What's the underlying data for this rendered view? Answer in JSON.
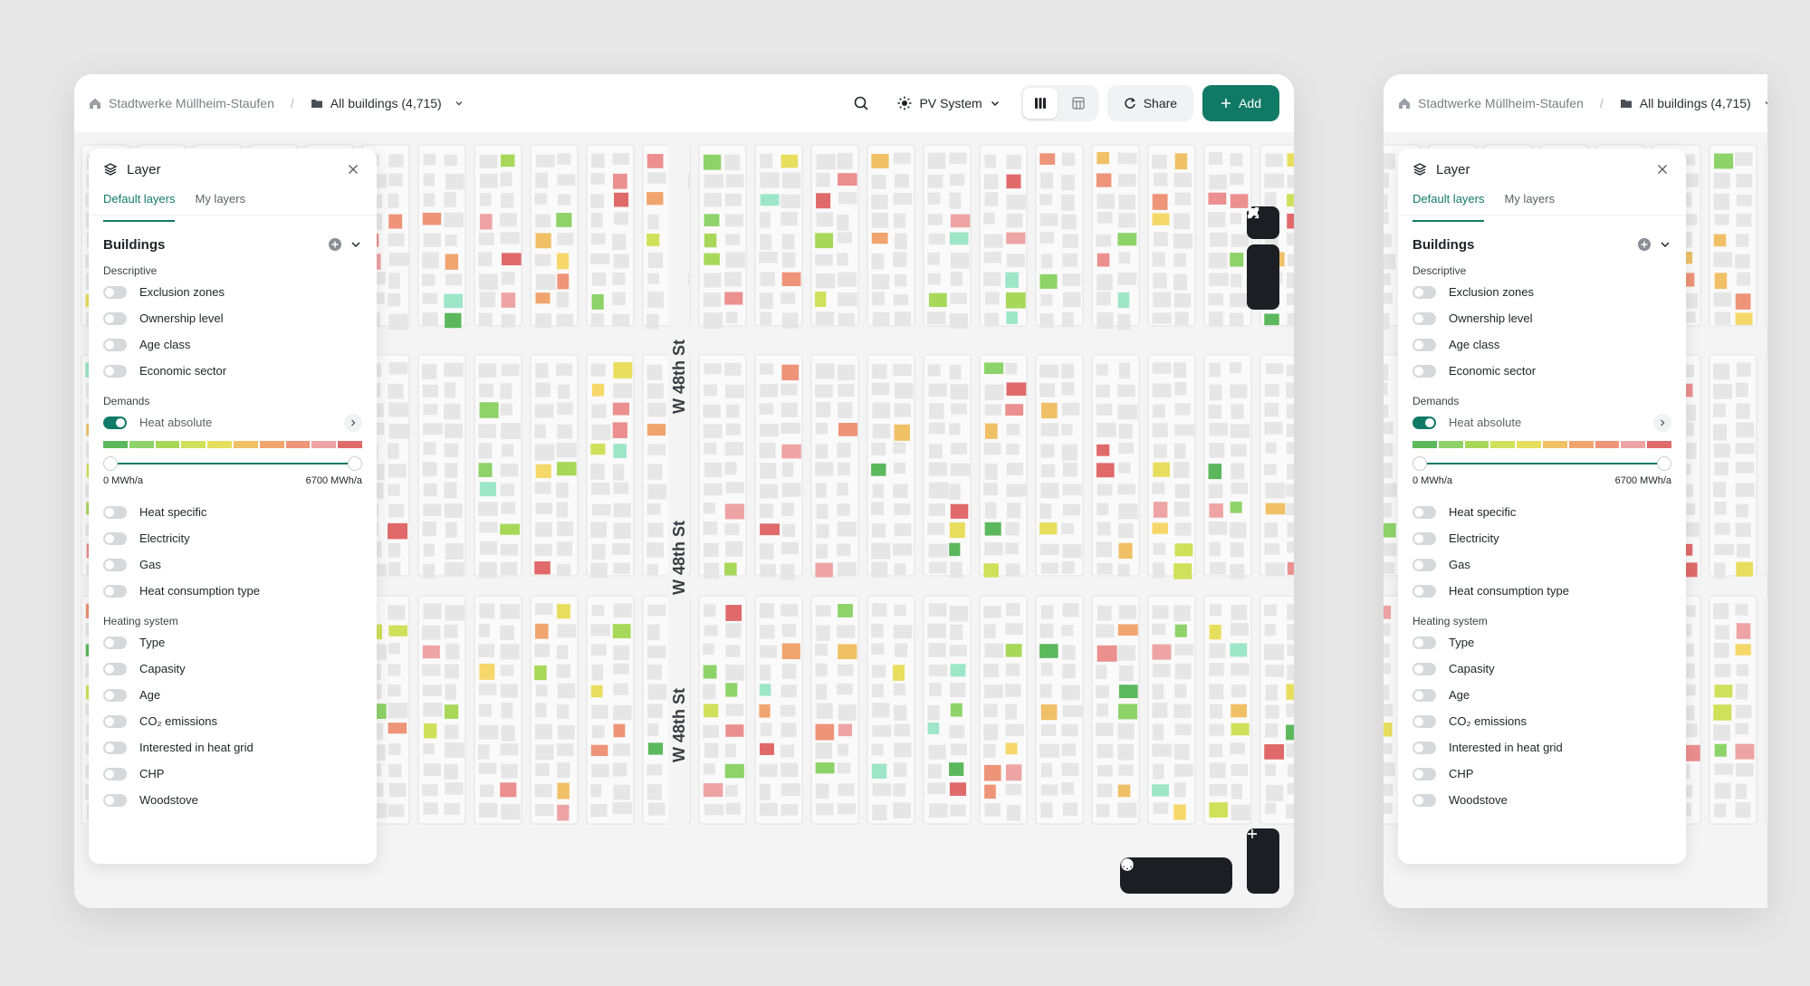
{
  "breadcrumb": {
    "organization": "Stadtwerke Müllheim-Staufen",
    "dataset": "All buildings (4,715)"
  },
  "toolbar": {
    "pv_label": "PV System",
    "share_label": "Share",
    "add_label": "Add"
  },
  "map": {
    "street_label": "W 48th St"
  },
  "layer_panel": {
    "title": "Layer",
    "tabs": [
      "Default layers",
      "My layers"
    ],
    "section_title": "Buildings",
    "groups": {
      "descriptive": "Descriptive",
      "demands": "Demands",
      "heating": "Heating system"
    },
    "descriptive_items": [
      "Exclusion zones",
      "Ownership level",
      "Age class",
      "Economic sector"
    ],
    "heat_absolute": "Heat absolute",
    "legend_colors": [
      "#5cb85c",
      "#8ed36a",
      "#a8d85a",
      "#cfe05a",
      "#e8de5e",
      "#f0c067",
      "#f0a56e",
      "#ee9478",
      "#eea4a4",
      "#e06a6a"
    ],
    "range_min": "0 MWh/a",
    "range_max": "6700 MWh/a",
    "demand_items": [
      "Heat specific",
      "Electricity",
      "Gas",
      "Heat consumption type"
    ],
    "heating_items": [
      "Type",
      "Capasity",
      "Age",
      "CO₂ emissions",
      "Interested in heat grid",
      "CHP",
      "Woodstove"
    ]
  },
  "colors": {
    "accent": "#117a66",
    "background": "#e7e7e7"
  }
}
